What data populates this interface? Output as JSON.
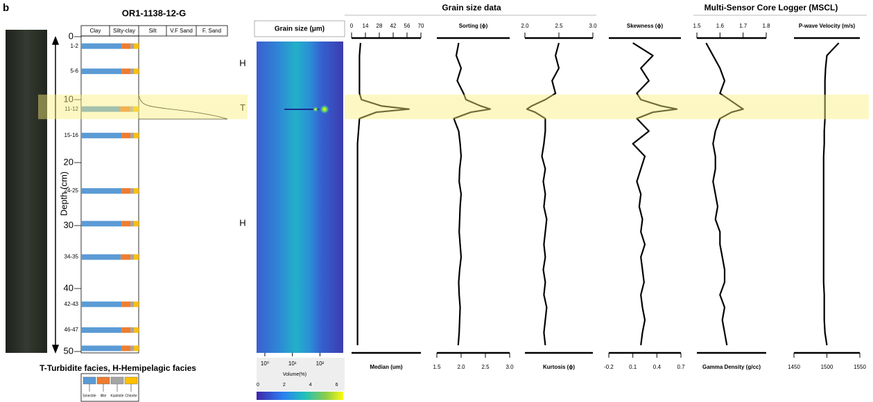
{
  "panel_label": "b",
  "core_title": "OR1-1138-12-G",
  "facies_legend": "T-Turbidite facies, H-Hemipelagic facies",
  "lithology_columns": [
    "Clay",
    "Silty-clay",
    "Silt",
    "V.F Sand",
    "F. Sand"
  ],
  "depth_axis": {
    "label": "Depth (cm)",
    "ylim": [
      0,
      50
    ],
    "yticks": [
      0,
      10,
      20,
      30,
      40,
      50
    ]
  },
  "facies": [
    {
      "label": "H",
      "depth": 4.3
    },
    {
      "label": "T",
      "depth": 11.4
    },
    {
      "label": "H",
      "depth": 29.7
    }
  ],
  "turbidite_band": [
    9.2,
    13.1
  ],
  "group_titles": [
    "Grain size data",
    "Multi-Sensor Core Logger (MSCL)"
  ],
  "grain_size_map": {
    "title": "Grain size (μm)",
    "xscale": "log",
    "xlim": [
      0.5,
      700
    ],
    "xticks": [
      {
        "value": 1,
        "label": "10⁰"
      },
      {
        "value": 10,
        "label": "10¹"
      },
      {
        "value": 100,
        "label": "10²"
      }
    ],
    "colorbar_label": "Volume(%)",
    "clim": [
      0,
      6.5
    ],
    "cticks": [
      0,
      2,
      4,
      6
    ]
  },
  "chart_data": [
    {
      "type": "stacked_bar",
      "categories": [
        "1-2",
        "5-6",
        "11-12",
        "15-16",
        "24-25",
        null,
        "34-35",
        "42-43",
        "46-47",
        null
      ],
      "depths": [
        1.5,
        5.5,
        11.5,
        15.7,
        24.5,
        29.7,
        35,
        42.5,
        46.6,
        49.5
      ],
      "series": [
        {
          "name": "Smectite",
          "color": "#5b9bd5",
          "values": [
            70,
            70,
            68,
            70,
            70,
            70,
            69,
            70,
            70,
            70
          ]
        },
        {
          "name": "Illite",
          "color": "#ed7d31",
          "values": [
            16,
            16,
            17,
            16,
            16,
            16,
            17,
            16,
            16,
            16
          ]
        },
        {
          "name": "Kaolinite",
          "color": "#a5a5a5",
          "values": [
            6,
            6,
            6,
            6,
            6,
            6,
            6,
            6,
            6,
            6
          ]
        },
        {
          "name": "Chlorite",
          "color": "#ffc000",
          "values": [
            8,
            8,
            9,
            8,
            8,
            8,
            8,
            8,
            8,
            8
          ]
        }
      ]
    },
    {
      "type": "line",
      "xlabel": "Median (um)",
      "xlabel_position": "bottom",
      "ticks_position": "top",
      "color": "#000000",
      "xlim": [
        0,
        70
      ],
      "xticks": [
        0,
        14,
        28,
        42,
        56,
        70
      ],
      "depths": [
        1,
        3,
        5,
        7,
        9,
        10,
        11,
        11.5,
        12,
        13,
        15,
        17,
        19,
        21,
        23,
        25,
        27,
        29,
        31,
        33,
        35,
        37,
        39,
        41,
        43,
        45,
        47,
        49
      ],
      "values": [
        9,
        8,
        8,
        8,
        8,
        10,
        30,
        58,
        25,
        8,
        7,
        6,
        6,
        6,
        6,
        6,
        6,
        6,
        6,
        6,
        6,
        6,
        6,
        6,
        6,
        6,
        6,
        6
      ]
    },
    {
      "type": "line",
      "xlabel": "Sorting (ϕ)",
      "xlabel_position": "top",
      "ticks_position": "bottom",
      "color": "#000000",
      "xlim": [
        1.5,
        3
      ],
      "xticks": [
        1.5,
        {
          "value": 2,
          "label": "2.0"
        },
        2.5,
        {
          "value": 3,
          "label": "3.0"
        }
      ],
      "depths": [
        1,
        3,
        5,
        7,
        9,
        10,
        11,
        11.5,
        12,
        13,
        15,
        17,
        19,
        21,
        23,
        25,
        27,
        29,
        31,
        33,
        35,
        37,
        39,
        41,
        43,
        45,
        47,
        49
      ],
      "values": [
        1.95,
        1.9,
        2.0,
        1.92,
        2.05,
        2.1,
        2.4,
        2.6,
        2.2,
        1.85,
        1.95,
        1.98,
        2.0,
        1.97,
        1.96,
        2.0,
        1.98,
        1.97,
        1.96,
        1.98,
        2.0,
        1.97,
        1.95,
        1.96,
        1.98,
        1.97,
        1.96,
        1.94
      ]
    },
    {
      "type": "line",
      "xlabel": "Kurtosis (ϕ)",
      "xlabel_position": "bottom",
      "ticks_position": "top",
      "color": "#000000",
      "xlim": [
        2,
        3
      ],
      "xticks": [
        {
          "value": 2,
          "label": "2.0"
        },
        2.5,
        {
          "value": 3,
          "label": "3.0"
        }
      ],
      "depths": [
        1,
        3,
        5,
        7,
        9,
        10,
        11,
        11.5,
        12,
        13,
        15,
        17,
        19,
        21,
        23,
        25,
        27,
        29,
        31,
        33,
        35,
        37,
        39,
        41,
        43,
        45,
        47,
        49
      ],
      "values": [
        2.5,
        2.45,
        2.5,
        2.4,
        2.45,
        2.3,
        2.1,
        2.03,
        2.15,
        2.3,
        2.3,
        2.28,
        2.25,
        2.3,
        2.27,
        2.3,
        2.28,
        2.32,
        2.3,
        2.28,
        2.3,
        2.27,
        2.3,
        2.28,
        2.32,
        2.3,
        2.28,
        2.3
      ]
    },
    {
      "type": "line",
      "xlabel": "Skewness (ϕ)",
      "xlabel_position": "top",
      "ticks_position": "bottom",
      "color": "#000000",
      "xlim": [
        -0.2,
        0.7
      ],
      "xticks": [
        -0.2,
        0.1,
        0.4,
        0.7
      ],
      "depths": [
        1,
        3,
        5,
        7,
        9,
        10,
        11,
        11.5,
        12,
        13,
        15,
        17,
        19,
        21,
        23,
        25,
        27,
        29,
        31,
        33,
        35,
        37,
        39,
        41,
        43,
        45,
        47,
        49
      ],
      "values": [
        0.1,
        0.35,
        0.2,
        0.3,
        0.15,
        0.2,
        0.45,
        0.65,
        0.35,
        0.15,
        0.3,
        0.1,
        0.25,
        0.2,
        0.15,
        0.2,
        0.18,
        0.22,
        0.2,
        0.25,
        0.2,
        0.22,
        0.24,
        0.2,
        0.22,
        0.25,
        0.22,
        0.2
      ]
    },
    {
      "type": "line",
      "xlabel": "Gamma Density (g/cc)",
      "xlabel_position": "bottom",
      "ticks_position": "top",
      "color": "#000000",
      "xlim": [
        1.5,
        1.8
      ],
      "xticks": [
        1.5,
        1.6,
        1.7,
        1.8
      ],
      "depths": [
        1,
        3,
        5,
        7,
        9,
        10,
        11,
        11.5,
        12,
        13,
        15,
        17,
        19,
        21,
        23,
        25,
        27,
        29,
        31,
        33,
        35,
        37,
        39,
        41,
        43,
        45,
        47,
        49
      ],
      "values": [
        1.54,
        1.57,
        1.6,
        1.62,
        1.6,
        1.64,
        1.68,
        1.7,
        1.65,
        1.6,
        1.58,
        1.57,
        1.58,
        1.58,
        1.57,
        1.58,
        1.59,
        1.58,
        1.6,
        1.6,
        1.61,
        1.62,
        1.62,
        1.6,
        1.62,
        1.61,
        1.62,
        1.63
      ]
    },
    {
      "type": "line",
      "xlabel": "P-wave Velocity (m/s)",
      "xlabel_position": "top",
      "ticks_position": "bottom",
      "color": "#000000",
      "xlim": [
        1450,
        1550
      ],
      "xticks": [
        1450,
        1500,
        1550
      ],
      "depths": [
        1,
        3,
        5,
        7,
        9,
        10,
        11,
        11.5,
        12,
        13,
        15,
        17,
        19,
        21,
        23,
        25,
        27,
        29,
        31,
        33,
        35,
        37,
        39,
        41,
        43,
        45,
        47,
        49
      ],
      "values": [
        1518,
        1500,
        1498,
        1497,
        1497,
        1497,
        1497,
        1497,
        1497,
        1497,
        1496,
        1496,
        1495,
        1495,
        1495,
        1495,
        1495,
        1495,
        1495,
        1495,
        1495,
        1495,
        1495,
        1496,
        1496,
        1496,
        1497,
        1500
      ]
    }
  ]
}
